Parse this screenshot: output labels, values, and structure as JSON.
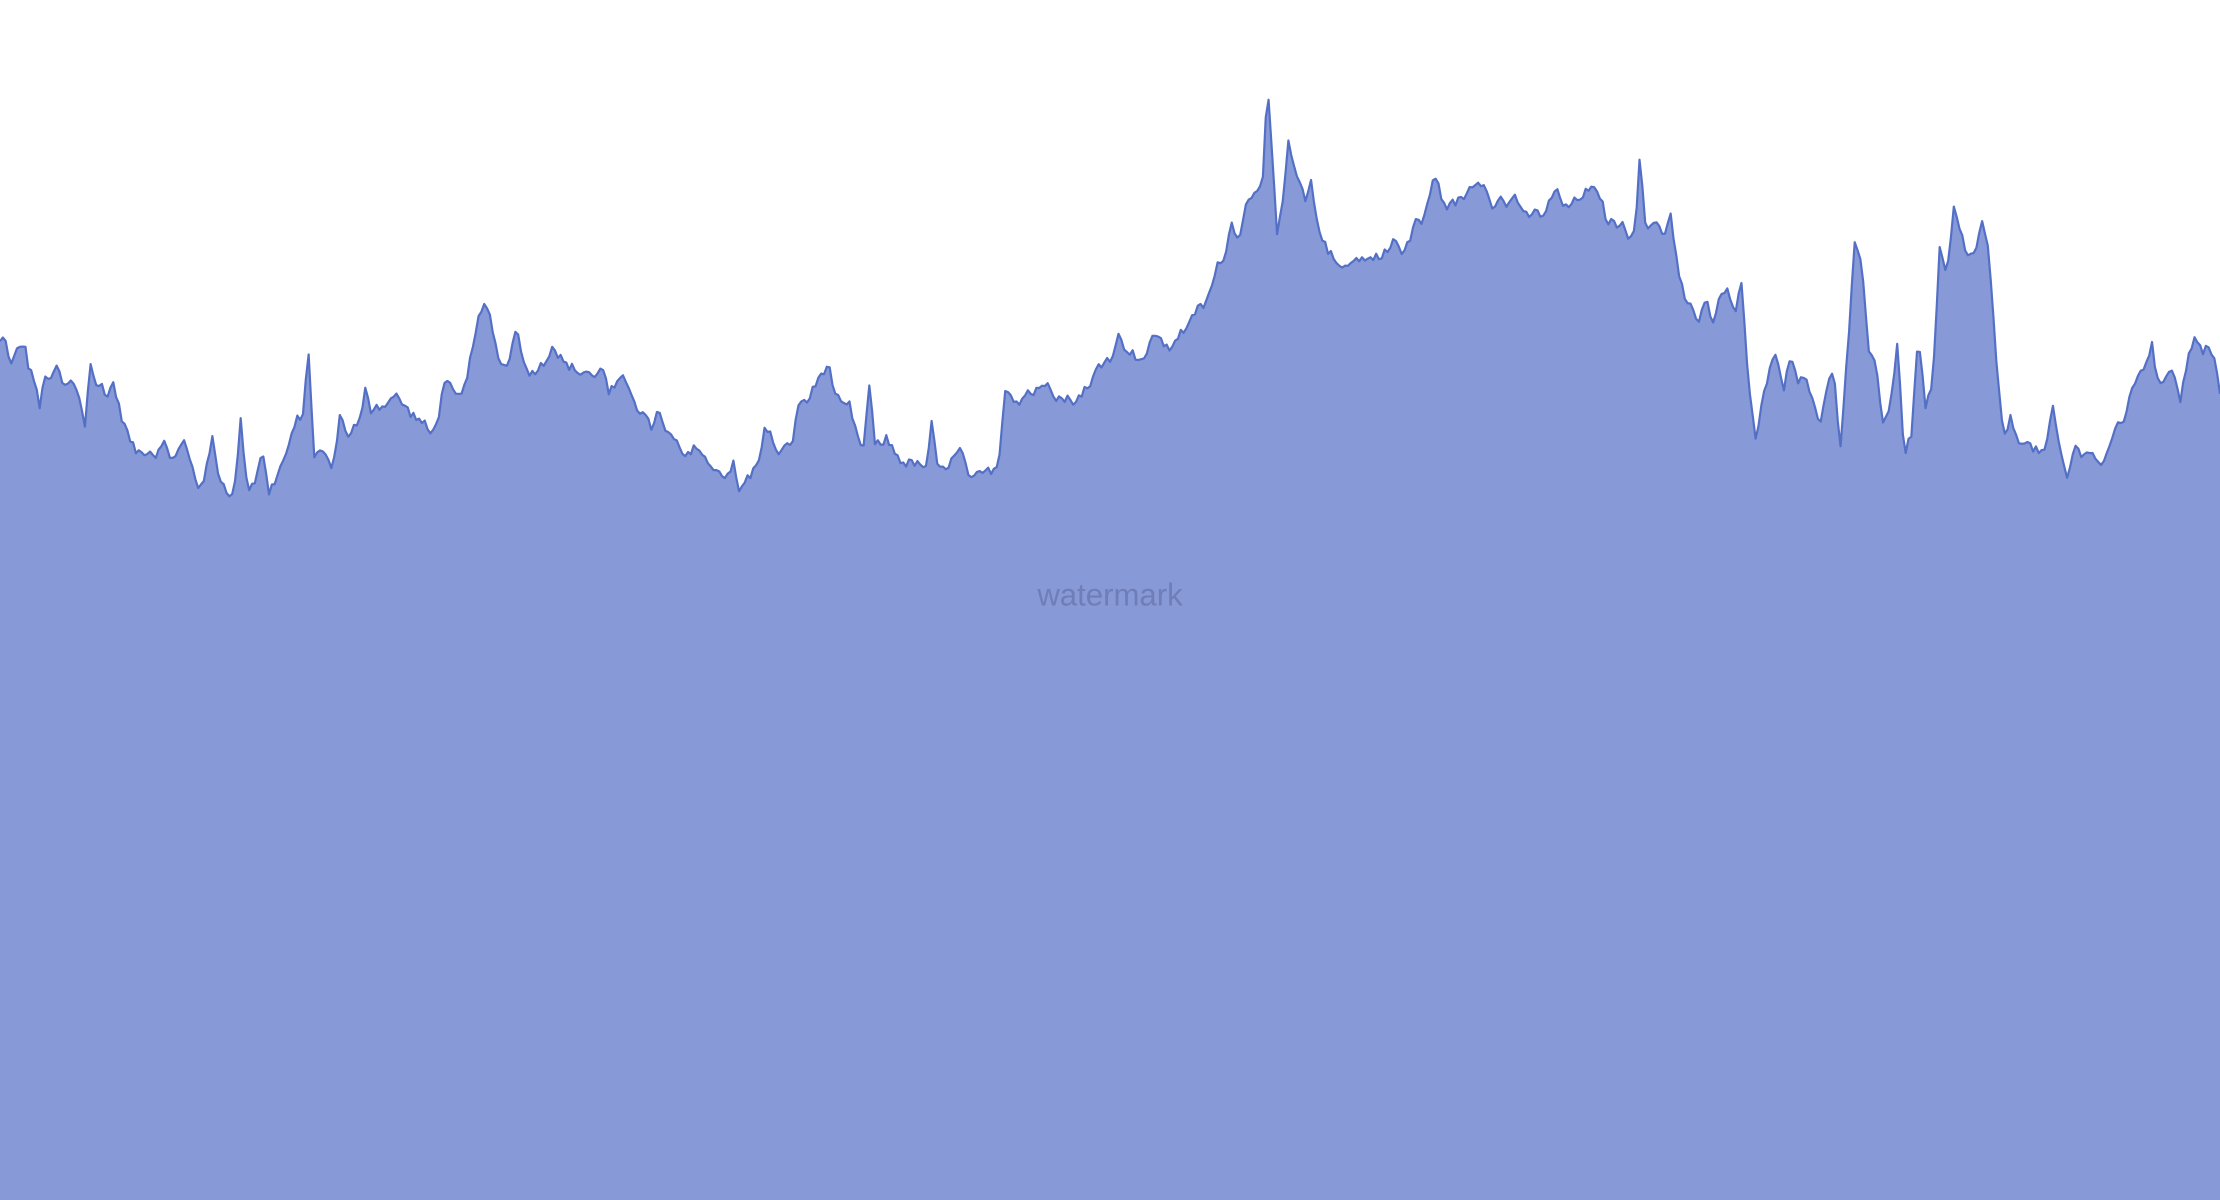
{
  "watermark": "watermark",
  "colors": {
    "line": "#5470c6",
    "area": "#8799d6",
    "background": "#ffffff",
    "watermark": "#6f7db8"
  },
  "chart_data": {
    "type": "area",
    "title": "",
    "xlabel": "",
    "ylabel": "",
    "grid": false,
    "legend": "none",
    "ylim": [
      0,
      848
    ],
    "x_count": 1568,
    "series": [
      {
        "name": "",
        "smooth": true,
        "keypoints": [
          [
            0,
            606
          ],
          [
            3,
            610
          ],
          [
            8,
            590
          ],
          [
            12,
            600
          ],
          [
            17,
            606
          ],
          [
            20,
            590
          ],
          [
            24,
            580
          ],
          [
            28,
            560
          ],
          [
            32,
            584
          ],
          [
            36,
            578
          ],
          [
            40,
            590
          ],
          [
            45,
            574
          ],
          [
            50,
            578
          ],
          [
            55,
            572
          ],
          [
            60,
            548
          ],
          [
            64,
            592
          ],
          [
            68,
            574
          ],
          [
            72,
            576
          ],
          [
            76,
            568
          ],
          [
            80,
            578
          ],
          [
            85,
            556
          ],
          [
            90,
            542
          ],
          [
            95,
            530
          ],
          [
            100,
            528
          ],
          [
            105,
            530
          ],
          [
            110,
            526
          ],
          [
            115,
            538
          ],
          [
            120,
            524
          ],
          [
            125,
            528
          ],
          [
            130,
            536
          ],
          [
            135,
            520
          ],
          [
            140,
            504
          ],
          [
            145,
            512
          ],
          [
            150,
            538
          ],
          [
            155,
            510
          ],
          [
            160,
            502
          ],
          [
            165,
            496
          ],
          [
            170,
            550
          ],
          [
            175,
            502
          ],
          [
            180,
            508
          ],
          [
            185,
            530
          ],
          [
            190,
            500
          ],
          [
            195,
            510
          ],
          [
            200,
            522
          ],
          [
            205,
            536
          ],
          [
            210,
            552
          ],
          [
            214,
            556
          ],
          [
            218,
            598
          ],
          [
            222,
            526
          ],
          [
            226,
            528
          ],
          [
            230,
            528
          ],
          [
            235,
            514
          ],
          [
            240,
            556
          ],
          [
            245,
            540
          ],
          [
            250,
            546
          ],
          [
            255,
            552
          ],
          [
            258,
            572
          ],
          [
            262,
            558
          ],
          [
            266,
            562
          ],
          [
            270,
            560
          ],
          [
            275,
            566
          ],
          [
            280,
            568
          ],
          [
            285,
            562
          ],
          [
            290,
            556
          ],
          [
            295,
            552
          ],
          [
            300,
            548
          ],
          [
            305,
            540
          ],
          [
            310,
            556
          ],
          [
            315,
            584
          ],
          [
            320,
            570
          ],
          [
            325,
            566
          ],
          [
            330,
            580
          ],
          [
            335,
            612
          ],
          [
            340,
            628
          ],
          [
            343,
            632
          ],
          [
            346,
            624
          ],
          [
            350,
            604
          ],
          [
            355,
            588
          ],
          [
            360,
            594
          ],
          [
            365,
            620
          ],
          [
            370,
            590
          ],
          [
            375,
            584
          ],
          [
            380,
            588
          ],
          [
            385,
            592
          ],
          [
            390,
            604
          ],
          [
            395,
            596
          ],
          [
            400,
            590
          ],
          [
            405,
            588
          ],
          [
            410,
            584
          ],
          [
            415,
            586
          ],
          [
            420,
            580
          ],
          [
            425,
            592
          ],
          [
            430,
            570
          ],
          [
            435,
            576
          ],
          [
            440,
            580
          ],
          [
            445,
            574
          ],
          [
            450,
            560
          ],
          [
            455,
            554
          ],
          [
            460,
            546
          ],
          [
            465,
            558
          ],
          [
            470,
            542
          ],
          [
            475,
            540
          ],
          [
            480,
            530
          ],
          [
            485,
            524
          ],
          [
            490,
            534
          ],
          [
            495,
            528
          ],
          [
            500,
            520
          ],
          [
            505,
            518
          ],
          [
            510,
            512
          ],
          [
            515,
            514
          ],
          [
            518,
            520
          ],
          [
            522,
            500
          ],
          [
            526,
            508
          ],
          [
            530,
            512
          ],
          [
            535,
            520
          ],
          [
            540,
            544
          ],
          [
            545,
            540
          ],
          [
            550,
            526
          ],
          [
            555,
            532
          ],
          [
            560,
            538
          ],
          [
            565,
            566
          ],
          [
            570,
            564
          ],
          [
            575,
            574
          ],
          [
            580,
            584
          ],
          [
            585,
            590
          ],
          [
            590,
            570
          ],
          [
            595,
            560
          ],
          [
            600,
            562
          ],
          [
            605,
            540
          ],
          [
            610,
            532
          ],
          [
            614,
            576
          ],
          [
            618,
            534
          ],
          [
            622,
            534
          ],
          [
            626,
            538
          ],
          [
            630,
            532
          ],
          [
            635,
            524
          ],
          [
            640,
            520
          ],
          [
            645,
            522
          ],
          [
            650,
            518
          ],
          [
            655,
            520
          ],
          [
            658,
            548
          ],
          [
            662,
            520
          ],
          [
            666,
            516
          ],
          [
            670,
            520
          ],
          [
            675,
            526
          ],
          [
            678,
            530
          ],
          [
            682,
            520
          ],
          [
            686,
            508
          ],
          [
            690,
            512
          ],
          [
            695,
            514
          ],
          [
            700,
            516
          ],
          [
            705,
            518
          ],
          [
            710,
            574
          ],
          [
            715,
            568
          ],
          [
            720,
            562
          ],
          [
            725,
            572
          ],
          [
            730,
            570
          ],
          [
            735,
            574
          ],
          [
            740,
            580
          ],
          [
            745,
            568
          ],
          [
            750,
            566
          ],
          [
            755,
            566
          ],
          [
            760,
            564
          ],
          [
            765,
            572
          ],
          [
            770,
            574
          ],
          [
            775,
            590
          ],
          [
            780,
            592
          ],
          [
            785,
            596
          ],
          [
            790,
            610
          ],
          [
            795,
            602
          ],
          [
            800,
            598
          ],
          [
            805,
            594
          ],
          [
            810,
            596
          ],
          [
            815,
            614
          ],
          [
            820,
            608
          ],
          [
            825,
            600
          ],
          [
            830,
            608
          ],
          [
            835,
            614
          ],
          [
            840,
            618
          ],
          [
            845,
            630
          ],
          [
            850,
            632
          ],
          [
            855,
            642
          ],
          [
            860,
            660
          ],
          [
            865,
            668
          ],
          [
            870,
            690
          ],
          [
            875,
            680
          ],
          [
            880,
            702
          ],
          [
            885,
            712
          ],
          [
            890,
            718
          ],
          [
            893,
            730
          ],
          [
            895,
            795
          ],
          [
            898,
            744
          ],
          [
            902,
            682
          ],
          [
            906,
            704
          ],
          [
            910,
            748
          ],
          [
            914,
            728
          ],
          [
            918,
            718
          ],
          [
            922,
            706
          ],
          [
            926,
            718
          ],
          [
            930,
            694
          ],
          [
            935,
            676
          ],
          [
            940,
            668
          ],
          [
            945,
            660
          ],
          [
            950,
            662
          ],
          [
            955,
            662
          ],
          [
            960,
            666
          ],
          [
            965,
            664
          ],
          [
            970,
            666
          ],
          [
            975,
            668
          ],
          [
            980,
            670
          ],
          [
            985,
            680
          ],
          [
            990,
            668
          ],
          [
            995,
            676
          ],
          [
            1000,
            694
          ],
          [
            1005,
            690
          ],
          [
            1010,
            710
          ],
          [
            1013,
            728
          ],
          [
            1016,
            716
          ],
          [
            1020,
            702
          ],
          [
            1025,
            704
          ],
          [
            1030,
            706
          ],
          [
            1035,
            710
          ],
          [
            1040,
            718
          ],
          [
            1045,
            720
          ],
          [
            1050,
            716
          ],
          [
            1055,
            700
          ],
          [
            1060,
            708
          ],
          [
            1065,
            702
          ],
          [
            1070,
            712
          ],
          [
            1075,
            696
          ],
          [
            1080,
            696
          ],
          [
            1085,
            698
          ],
          [
            1090,
            696
          ],
          [
            1095,
            706
          ],
          [
            1100,
            714
          ],
          [
            1105,
            700
          ],
          [
            1110,
            704
          ],
          [
            1115,
            708
          ],
          [
            1120,
            712
          ],
          [
            1125,
            714
          ],
          [
            1130,
            710
          ],
          [
            1135,
            692
          ],
          [
            1140,
            690
          ],
          [
            1145,
            690
          ],
          [
            1150,
            682
          ],
          [
            1155,
            686
          ],
          [
            1158,
            738
          ],
          [
            1162,
            690
          ],
          [
            1166,
            686
          ],
          [
            1170,
            692
          ],
          [
            1175,
            682
          ],
          [
            1180,
            696
          ],
          [
            1185,
            660
          ],
          [
            1190,
            636
          ],
          [
            1195,
            630
          ],
          [
            1200,
            620
          ],
          [
            1205,
            636
          ],
          [
            1210,
            620
          ],
          [
            1215,
            640
          ],
          [
            1220,
            642
          ],
          [
            1225,
            626
          ],
          [
            1230,
            646
          ],
          [
            1235,
            580
          ],
          [
            1240,
            540
          ],
          [
            1245,
            564
          ],
          [
            1250,
            590
          ],
          [
            1255,
            598
          ],
          [
            1260,
            574
          ],
          [
            1265,
            596
          ],
          [
            1270,
            580
          ],
          [
            1275,
            584
          ],
          [
            1280,
            566
          ],
          [
            1285,
            546
          ],
          [
            1290,
            574
          ],
          [
            1295,
            586
          ],
          [
            1300,
            530
          ],
          [
            1305,
            600
          ],
          [
            1310,
            674
          ],
          [
            1315,
            664
          ],
          [
            1320,
            600
          ],
          [
            1325,
            590
          ],
          [
            1330,
            550
          ],
          [
            1335,
            560
          ],
          [
            1340,
            604
          ],
          [
            1345,
            528
          ],
          [
            1350,
            540
          ],
          [
            1355,
            612
          ],
          [
            1360,
            560
          ],
          [
            1365,
            574
          ],
          [
            1370,
            672
          ],
          [
            1375,
            652
          ],
          [
            1380,
            700
          ],
          [
            1385,
            684
          ],
          [
            1390,
            666
          ],
          [
            1395,
            670
          ],
          [
            1400,
            690
          ],
          [
            1405,
            668
          ],
          [
            1410,
            590
          ],
          [
            1415,
            540
          ],
          [
            1420,
            552
          ],
          [
            1425,
            538
          ],
          [
            1430,
            536
          ],
          [
            1435,
            532
          ],
          [
            1440,
            528
          ],
          [
            1445,
            530
          ],
          [
            1450,
            560
          ],
          [
            1455,
            530
          ],
          [
            1460,
            510
          ],
          [
            1465,
            532
          ],
          [
            1470,
            528
          ],
          [
            1475,
            530
          ],
          [
            1480,
            524
          ],
          [
            1485,
            520
          ],
          [
            1490,
            530
          ],
          [
            1495,
            548
          ],
          [
            1500,
            552
          ],
          [
            1505,
            568
          ],
          [
            1510,
            584
          ],
          [
            1515,
            590
          ],
          [
            1520,
            604
          ],
          [
            1525,
            572
          ],
          [
            1530,
            584
          ],
          [
            1535,
            588
          ],
          [
            1540,
            566
          ],
          [
            1545,
            592
          ],
          [
            1550,
            612
          ],
          [
            1555,
            600
          ],
          [
            1560,
            602
          ],
          [
            1565,
            590
          ],
          [
            1568,
            570
          ]
        ]
      }
    ]
  }
}
